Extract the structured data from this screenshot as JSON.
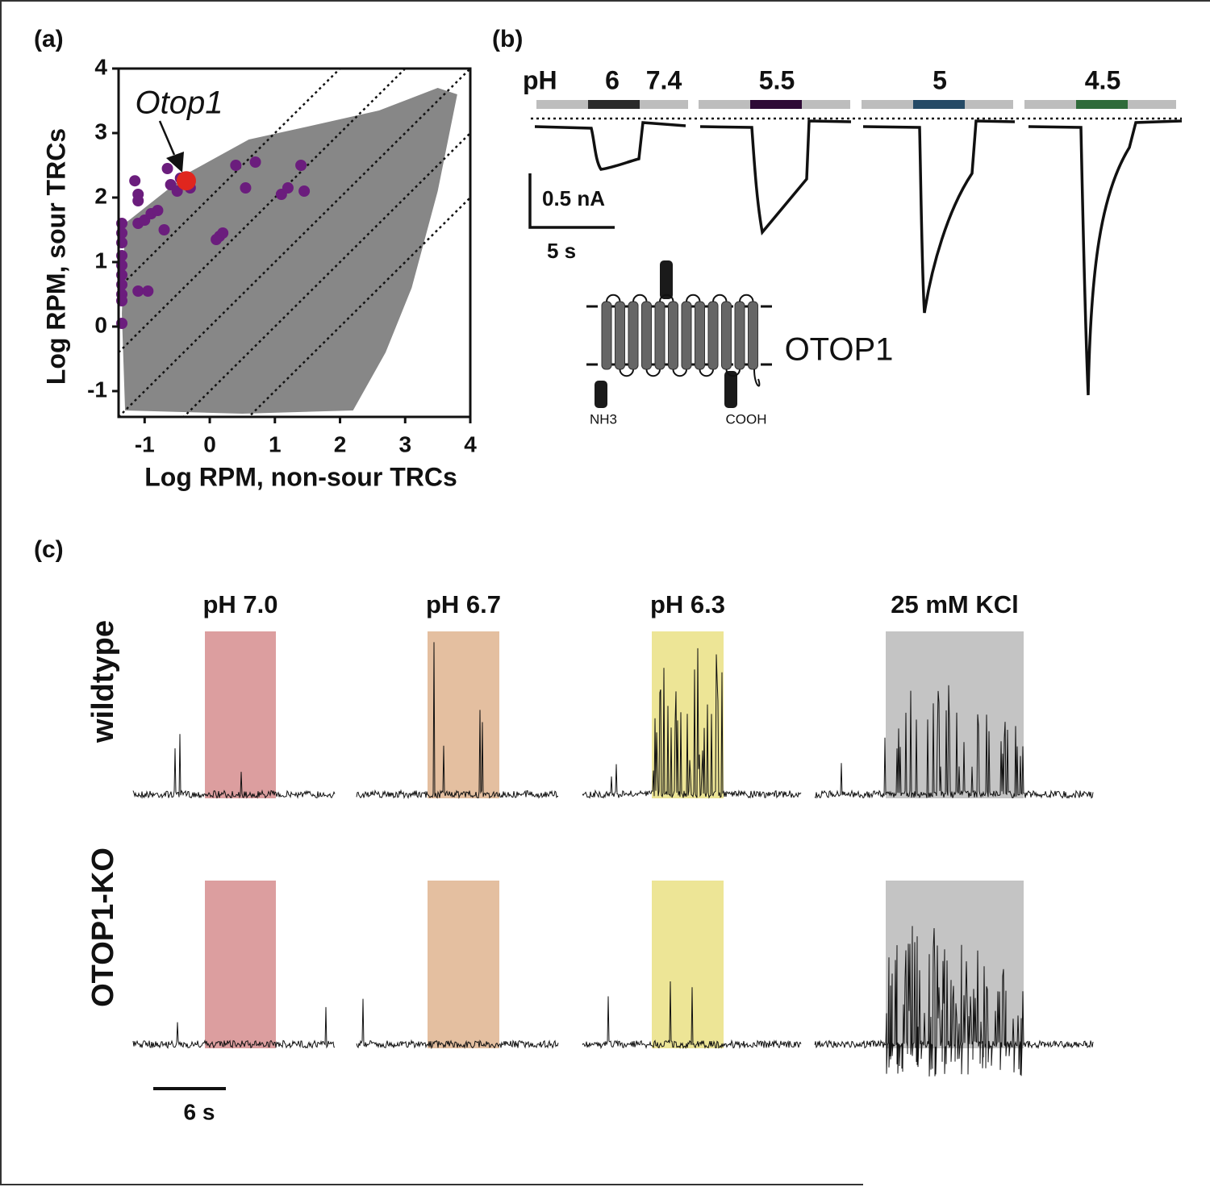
{
  "panel_labels": [
    "(a)",
    "(b)",
    "(c)"
  ],
  "panel_a": {
    "xlabel": "Log RPM, non-sour TRCs",
    "ylabel": "Log RPM, sour TRCs",
    "xlim": [
      -1.4,
      4
    ],
    "ylim": [
      -1.4,
      4
    ],
    "xticks": [
      -1,
      0,
      1,
      2,
      3,
      4
    ],
    "yticks": [
      -1,
      0,
      1,
      2,
      3,
      4
    ],
    "diagonals": [
      2,
      1,
      0,
      -1,
      -2
    ],
    "background_color": "#7a7a7a",
    "highlight": {
      "label": "Otop1",
      "x": -0.36,
      "y": 2.26,
      "color": "#e0261e"
    },
    "enriched": {
      "color": "#6b1d7d",
      "x": [
        -1.15,
        -1.1,
        -1.1,
        -1.35,
        -1.35,
        -1.35,
        -1.35,
        -1.35,
        -1.35,
        -1.35,
        -1.35,
        -1.35,
        -1.35,
        -1.1,
        -1.1,
        -1.0,
        -0.9,
        -0.8,
        -0.7,
        -0.95,
        -0.6,
        -0.5,
        -0.45,
        -0.3,
        -0.65,
        0.4,
        0.7,
        0.55,
        1.1,
        1.2,
        1.4,
        1.45,
        0.15,
        0.2,
        0.1
      ],
      "y": [
        2.26,
        2.05,
        1.95,
        1.6,
        1.45,
        1.3,
        1.1,
        0.95,
        0.8,
        0.65,
        0.5,
        0.4,
        0.05,
        0.55,
        1.6,
        1.65,
        1.75,
        1.8,
        1.5,
        0.55,
        2.2,
        2.1,
        2.3,
        2.15,
        2.45,
        2.5,
        2.55,
        2.15,
        2.05,
        2.15,
        2.5,
        2.1,
        1.4,
        1.45,
        1.35
      ]
    }
  },
  "panel_b": {
    "ph_label": "pH",
    "baseline_label": "7.4",
    "baseline_color": "#bdbdbd",
    "conditions": [
      {
        "label": "6",
        "color": "#2b2b2b"
      },
      {
        "label": "5.5",
        "color": "#2e0a36"
      },
      {
        "label": "5",
        "color": "#254a66"
      },
      {
        "label": "4.5",
        "color": "#2f6b3a"
      }
    ],
    "scale_current": "0.5 nA",
    "scale_time": "5 s",
    "protein": "OTOP1",
    "n_terminus": "NH3",
    "c_terminus": "COOH"
  },
  "panel_c": {
    "columns": [
      {
        "title": "pH 7.0",
        "color": "#dc9e9f"
      },
      {
        "title": "pH 6.7",
        "color": "#e4bfa0"
      },
      {
        "title": "pH 6.3",
        "color": "#ede596"
      },
      {
        "title": "25 mM KCl",
        "color": "#c4c4c4"
      }
    ],
    "rows": [
      "wildtype",
      "OTOP1-KO"
    ],
    "scale_time": "6 s"
  }
}
